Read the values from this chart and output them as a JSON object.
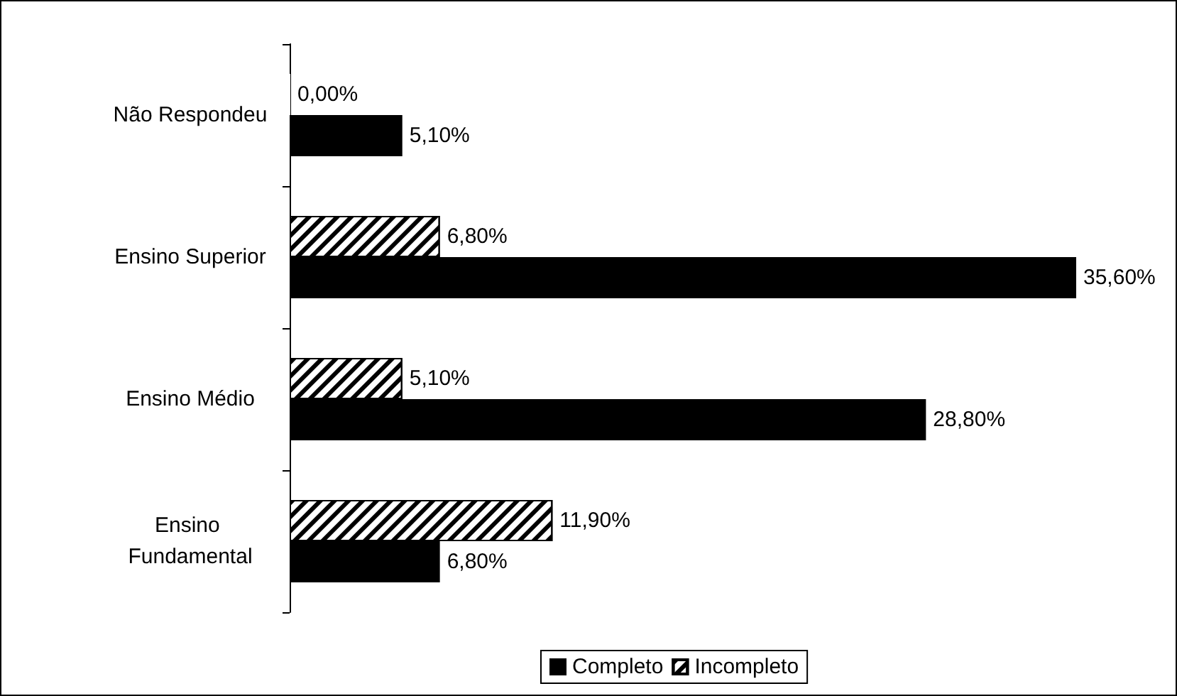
{
  "chart_data": {
    "type": "bar",
    "orientation": "horizontal",
    "categories": [
      "Não Respondeu",
      "Ensino Superior",
      "Ensino Médio",
      "Ensino Fundamental"
    ],
    "series": [
      {
        "name": "Incompleto",
        "color": "#ffffff",
        "values": [
          0,
          6.8,
          5.1,
          11.9
        ],
        "value_labels": [
          "0,00%",
          "6,80%",
          "5,10%",
          "11,90%"
        ]
      },
      {
        "name": "Completo",
        "color": "#000000",
        "values": [
          5.1,
          35.6,
          28.8,
          6.8
        ],
        "value_labels": [
          "5,10%",
          "35,60%",
          "28,80%",
          "6,80%"
        ]
      }
    ],
    "grid": false,
    "legend": "bottom"
  }
}
